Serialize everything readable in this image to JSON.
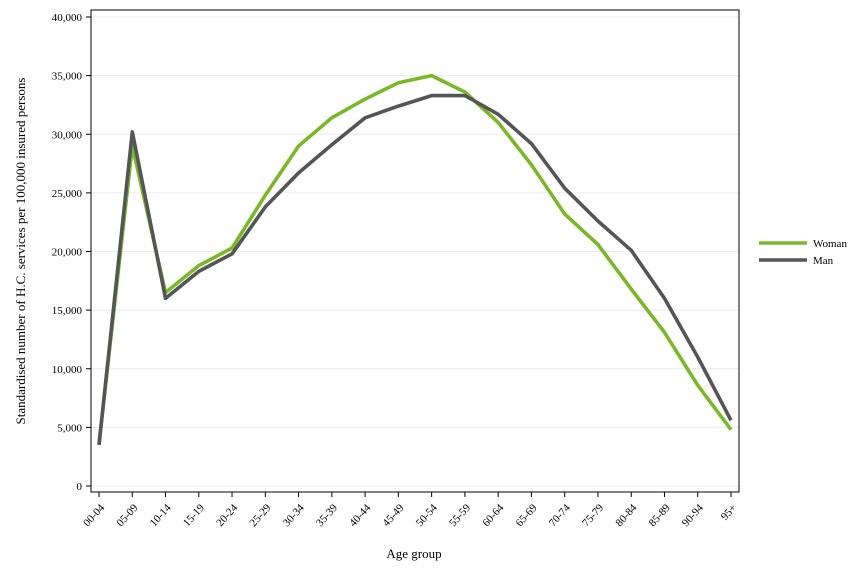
{
  "chart_data": {
    "type": "line",
    "title": "",
    "xlabel": "Age group",
    "ylabel": "Standardised number of H.C. services per 100,000 insured persons",
    "categories": [
      "00-04",
      "05-09",
      "10-14",
      "15-19",
      "20-24",
      "25-29",
      "30-34",
      "35-39",
      "40-44",
      "45-49",
      "50-54",
      "55-59",
      "60-64",
      "65-69",
      "70-74",
      "75-79",
      "80-84",
      "85-89",
      "90-94",
      "95+"
    ],
    "series": [
      {
        "name": "Woman",
        "color": "#7ab829",
        "values": [
          3600,
          29000,
          16500,
          18800,
          20300,
          24800,
          29000,
          31400,
          33000,
          34400,
          35000,
          33600,
          31000,
          27400,
          23200,
          20600,
          16800,
          13100,
          8600,
          4800
        ]
      },
      {
        "name": "Man",
        "color": "#555555",
        "values": [
          3500,
          30200,
          16000,
          18300,
          19800,
          23800,
          26700,
          29100,
          31400,
          32400,
          33300,
          33300,
          31700,
          29200,
          25400,
          22600,
          20100,
          16000,
          11000,
          5600
        ]
      }
    ],
    "ylim": [
      0,
      40000
    ],
    "yticks": [
      0,
      5000,
      10000,
      15000,
      20000,
      25000,
      30000,
      35000,
      40000
    ],
    "ytick_labels": [
      "0",
      "5,000",
      "10,000",
      "15,000",
      "20,000",
      "25,000",
      "30,000",
      "35,000",
      "40,000"
    ],
    "grid": true,
    "legend_position": "right"
  }
}
